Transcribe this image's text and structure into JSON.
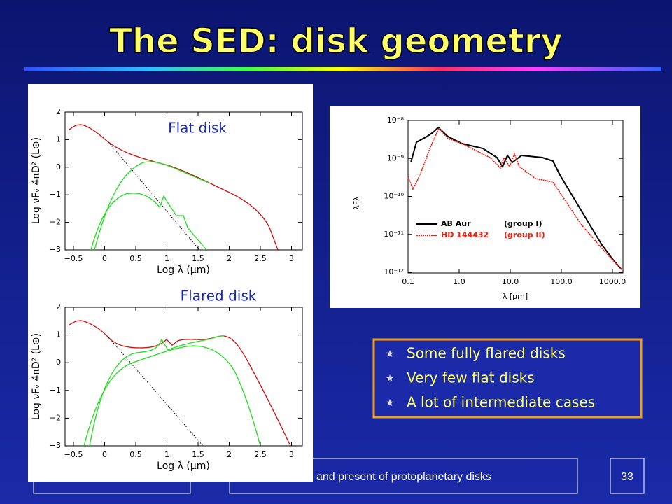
{
  "title": "The SED:  disk geometry",
  "plots": [
    {
      "label": "Flat disk",
      "xlabel": "Log λ (μm)",
      "ylabel": "Log νFᵥ  4πD²  (L⊙)",
      "xticks": [
        {
          "value": -0.5,
          "label": "−0.5"
        },
        0,
        0.5,
        1,
        1.5,
        2,
        2.5,
        3
      ],
      "yticks": [
        {
          "value": -3,
          "label": "−3"
        },
        {
          "value": -2,
          "label": "−2"
        },
        {
          "value": -1,
          "label": "−1"
        },
        0,
        1,
        2
      ]
    },
    {
      "label": "Flared disk",
      "xlabel": "Log λ (μm)",
      "ylabel": "Log νFᵥ  4πD²  (L⊙)",
      "xticks": [
        {
          "value": -0.5,
          "label": "−0.5"
        },
        0,
        0.5,
        1,
        1.5,
        2,
        2.5,
        3
      ],
      "yticks": [
        {
          "value": -3,
          "label": "−3"
        },
        {
          "value": -2,
          "label": "−2"
        },
        {
          "value": -1,
          "label": "−1"
        },
        0,
        1,
        2
      ]
    }
  ],
  "sed_plot": {
    "xlabel": "λ [μm]",
    "ylabel": "λFλ",
    "xticks": [
      {
        "value": 0.1,
        "label": "0.1"
      },
      {
        "value": 1,
        "label": "1.0"
      },
      {
        "value": 10,
        "label": "10.0"
      },
      {
        "value": 100,
        "label": "100.0"
      },
      {
        "value": 1000,
        "label": "1000.0"
      }
    ],
    "yticks": [
      {
        "value": 1e-12,
        "label": "10⁻¹²"
      },
      {
        "value": 1e-11,
        "label": "10⁻¹¹"
      },
      {
        "value": 1e-10,
        "label": "10⁻¹⁰"
      },
      {
        "value": 1e-09,
        "label": "10⁻⁹"
      },
      {
        "value": 1e-08,
        "label": "10⁻⁸"
      }
    ],
    "legend": [
      {
        "name": "AB Aur",
        "group": "(group I)"
      },
      {
        "name": "HD 144432",
        "group": "(group II)"
      }
    ]
  },
  "bullets": [
    "Some fully flared disks",
    "Very few flat disks",
    "A lot of intermediate cases"
  ],
  "footer": {
    "center": "and present of protoplanetary disks",
    "page": "33"
  }
}
